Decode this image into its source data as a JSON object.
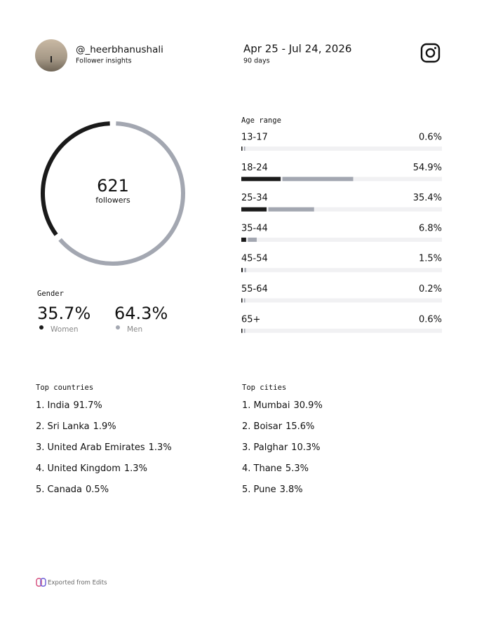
{
  "header": {
    "username": "@_heerbhanushali",
    "subtitle": "Follower insights",
    "date_range": "Apr 25 - Jul 24, 2026",
    "duration": "90 days"
  },
  "followers": {
    "count": "621",
    "label": "followers"
  },
  "gender": {
    "title": "Gender",
    "women": {
      "name": "Women",
      "value": 35.7,
      "value_label": "35.7%",
      "color": "#1a1a1a"
    },
    "men": {
      "name": "Men",
      "value": 64.3,
      "value_label": "64.3%",
      "color": "#a3a7b1"
    }
  },
  "age_range": {
    "title": "Age range",
    "groups": [
      {
        "label": "13-17",
        "value": 0.6,
        "value_label": "0.6%",
        "women": 0.3,
        "men": 0.3
      },
      {
        "label": "18-24",
        "value": 54.9,
        "value_label": "54.9%",
        "women": 19.6,
        "men": 35.3
      },
      {
        "label": "25-34",
        "value": 35.4,
        "value_label": "35.4%",
        "women": 12.6,
        "men": 22.8
      },
      {
        "label": "35-44",
        "value": 6.8,
        "value_label": "6.8%",
        "women": 2.4,
        "men": 4.4
      },
      {
        "label": "45-54",
        "value": 1.5,
        "value_label": "1.5%",
        "women": 0.7,
        "men": 0.8
      },
      {
        "label": "55-64",
        "value": 0.2,
        "value_label": "0.2%",
        "women": 0.1,
        "men": 0.1
      },
      {
        "label": "65+",
        "value": 0.6,
        "value_label": "0.6%",
        "women": 0.3,
        "men": 0.3
      }
    ]
  },
  "top_countries": {
    "title": "Top countries",
    "items": [
      {
        "label": "1. India",
        "share": "91.7%"
      },
      {
        "label": "2. Sri Lanka",
        "share": "1.9%"
      },
      {
        "label": "3. United Arab Emirates",
        "share": "1.3%"
      },
      {
        "label": "4. United Kingdom",
        "share": "1.3%"
      },
      {
        "label": "5. Canada",
        "share": "0.5%"
      }
    ]
  },
  "top_cities": {
    "title": "Top cities",
    "items": [
      {
        "label": "1. Mumbai",
        "share": "30.9%"
      },
      {
        "label": "2. Boisar",
        "share": "15.6%"
      },
      {
        "label": "3. Palghar",
        "share": "10.3%"
      },
      {
        "label": "4. Thane",
        "share": "5.3%"
      },
      {
        "label": "5. Pune",
        "share": "3.8%"
      }
    ]
  },
  "footer": {
    "text": "Exported from Edits"
  }
}
